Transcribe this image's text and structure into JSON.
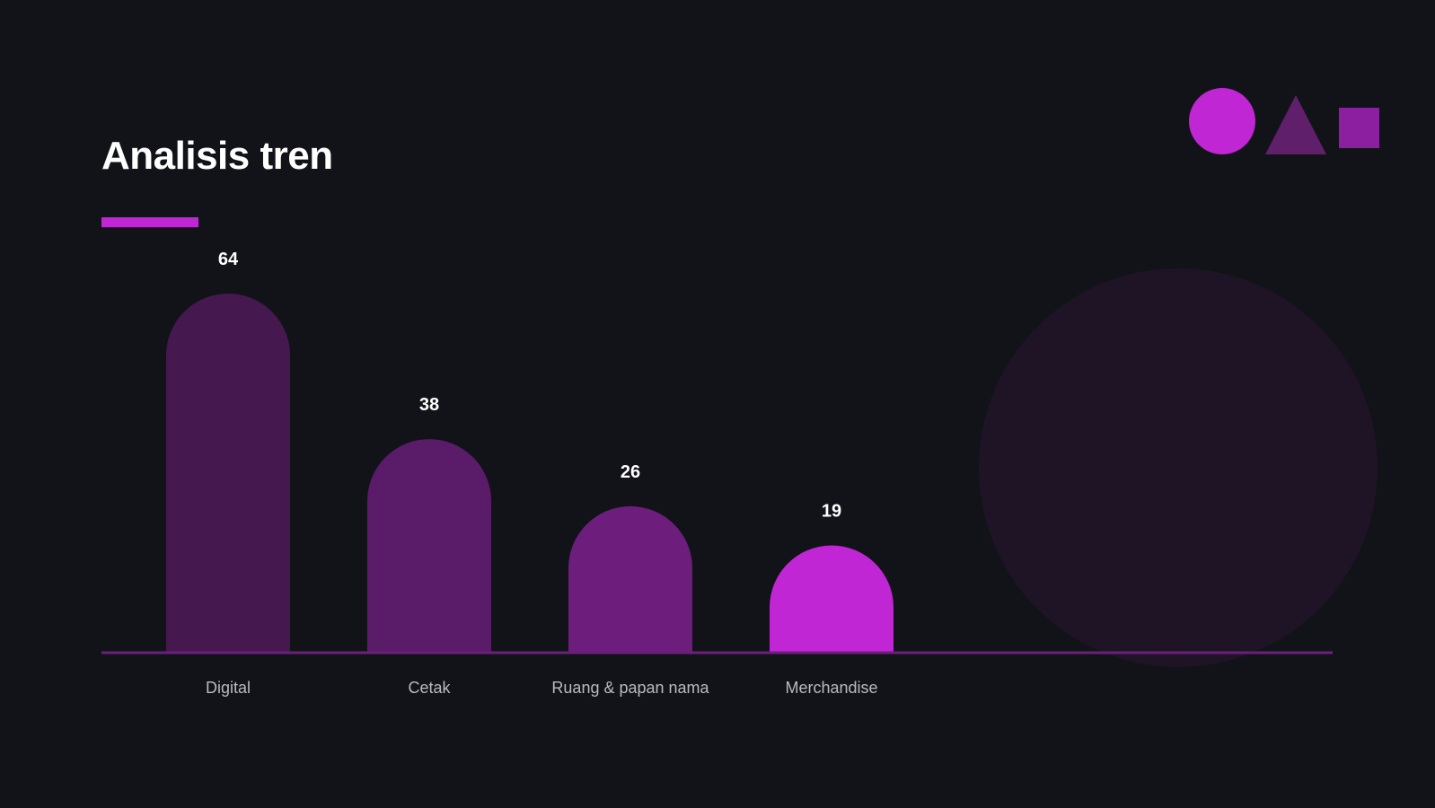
{
  "slide": {
    "title": "Analisis tren"
  },
  "colors": {
    "background": "#121319",
    "accent": "#c026d3",
    "bar_colors": [
      "#45194f",
      "#5a1b69",
      "#6d1e7d",
      "#c026d3"
    ],
    "baseline": "#6d1e7d",
    "value_label": "#ffffff",
    "category_label": "#b9b9c3",
    "deco_circle": "#c026d3",
    "deco_triangle": "#5f1f6b",
    "deco_square": "#8b1fa0",
    "bg_circle": "#1e1425"
  },
  "decorations": [
    "circle-shape",
    "triangle-shape",
    "square-shape",
    "background-circle"
  ],
  "chart_data": {
    "type": "bar",
    "title": "Analisis tren",
    "categories": [
      "Digital",
      "Cetak",
      "Ruang & papan nama",
      "Merchandise"
    ],
    "values": [
      64,
      38,
      26,
      19
    ],
    "data_labels": [
      "64",
      "38",
      "26",
      "19"
    ],
    "xlabel": "",
    "ylabel": "",
    "ylim": [
      0,
      64
    ],
    "grid": false,
    "legend": "none"
  }
}
